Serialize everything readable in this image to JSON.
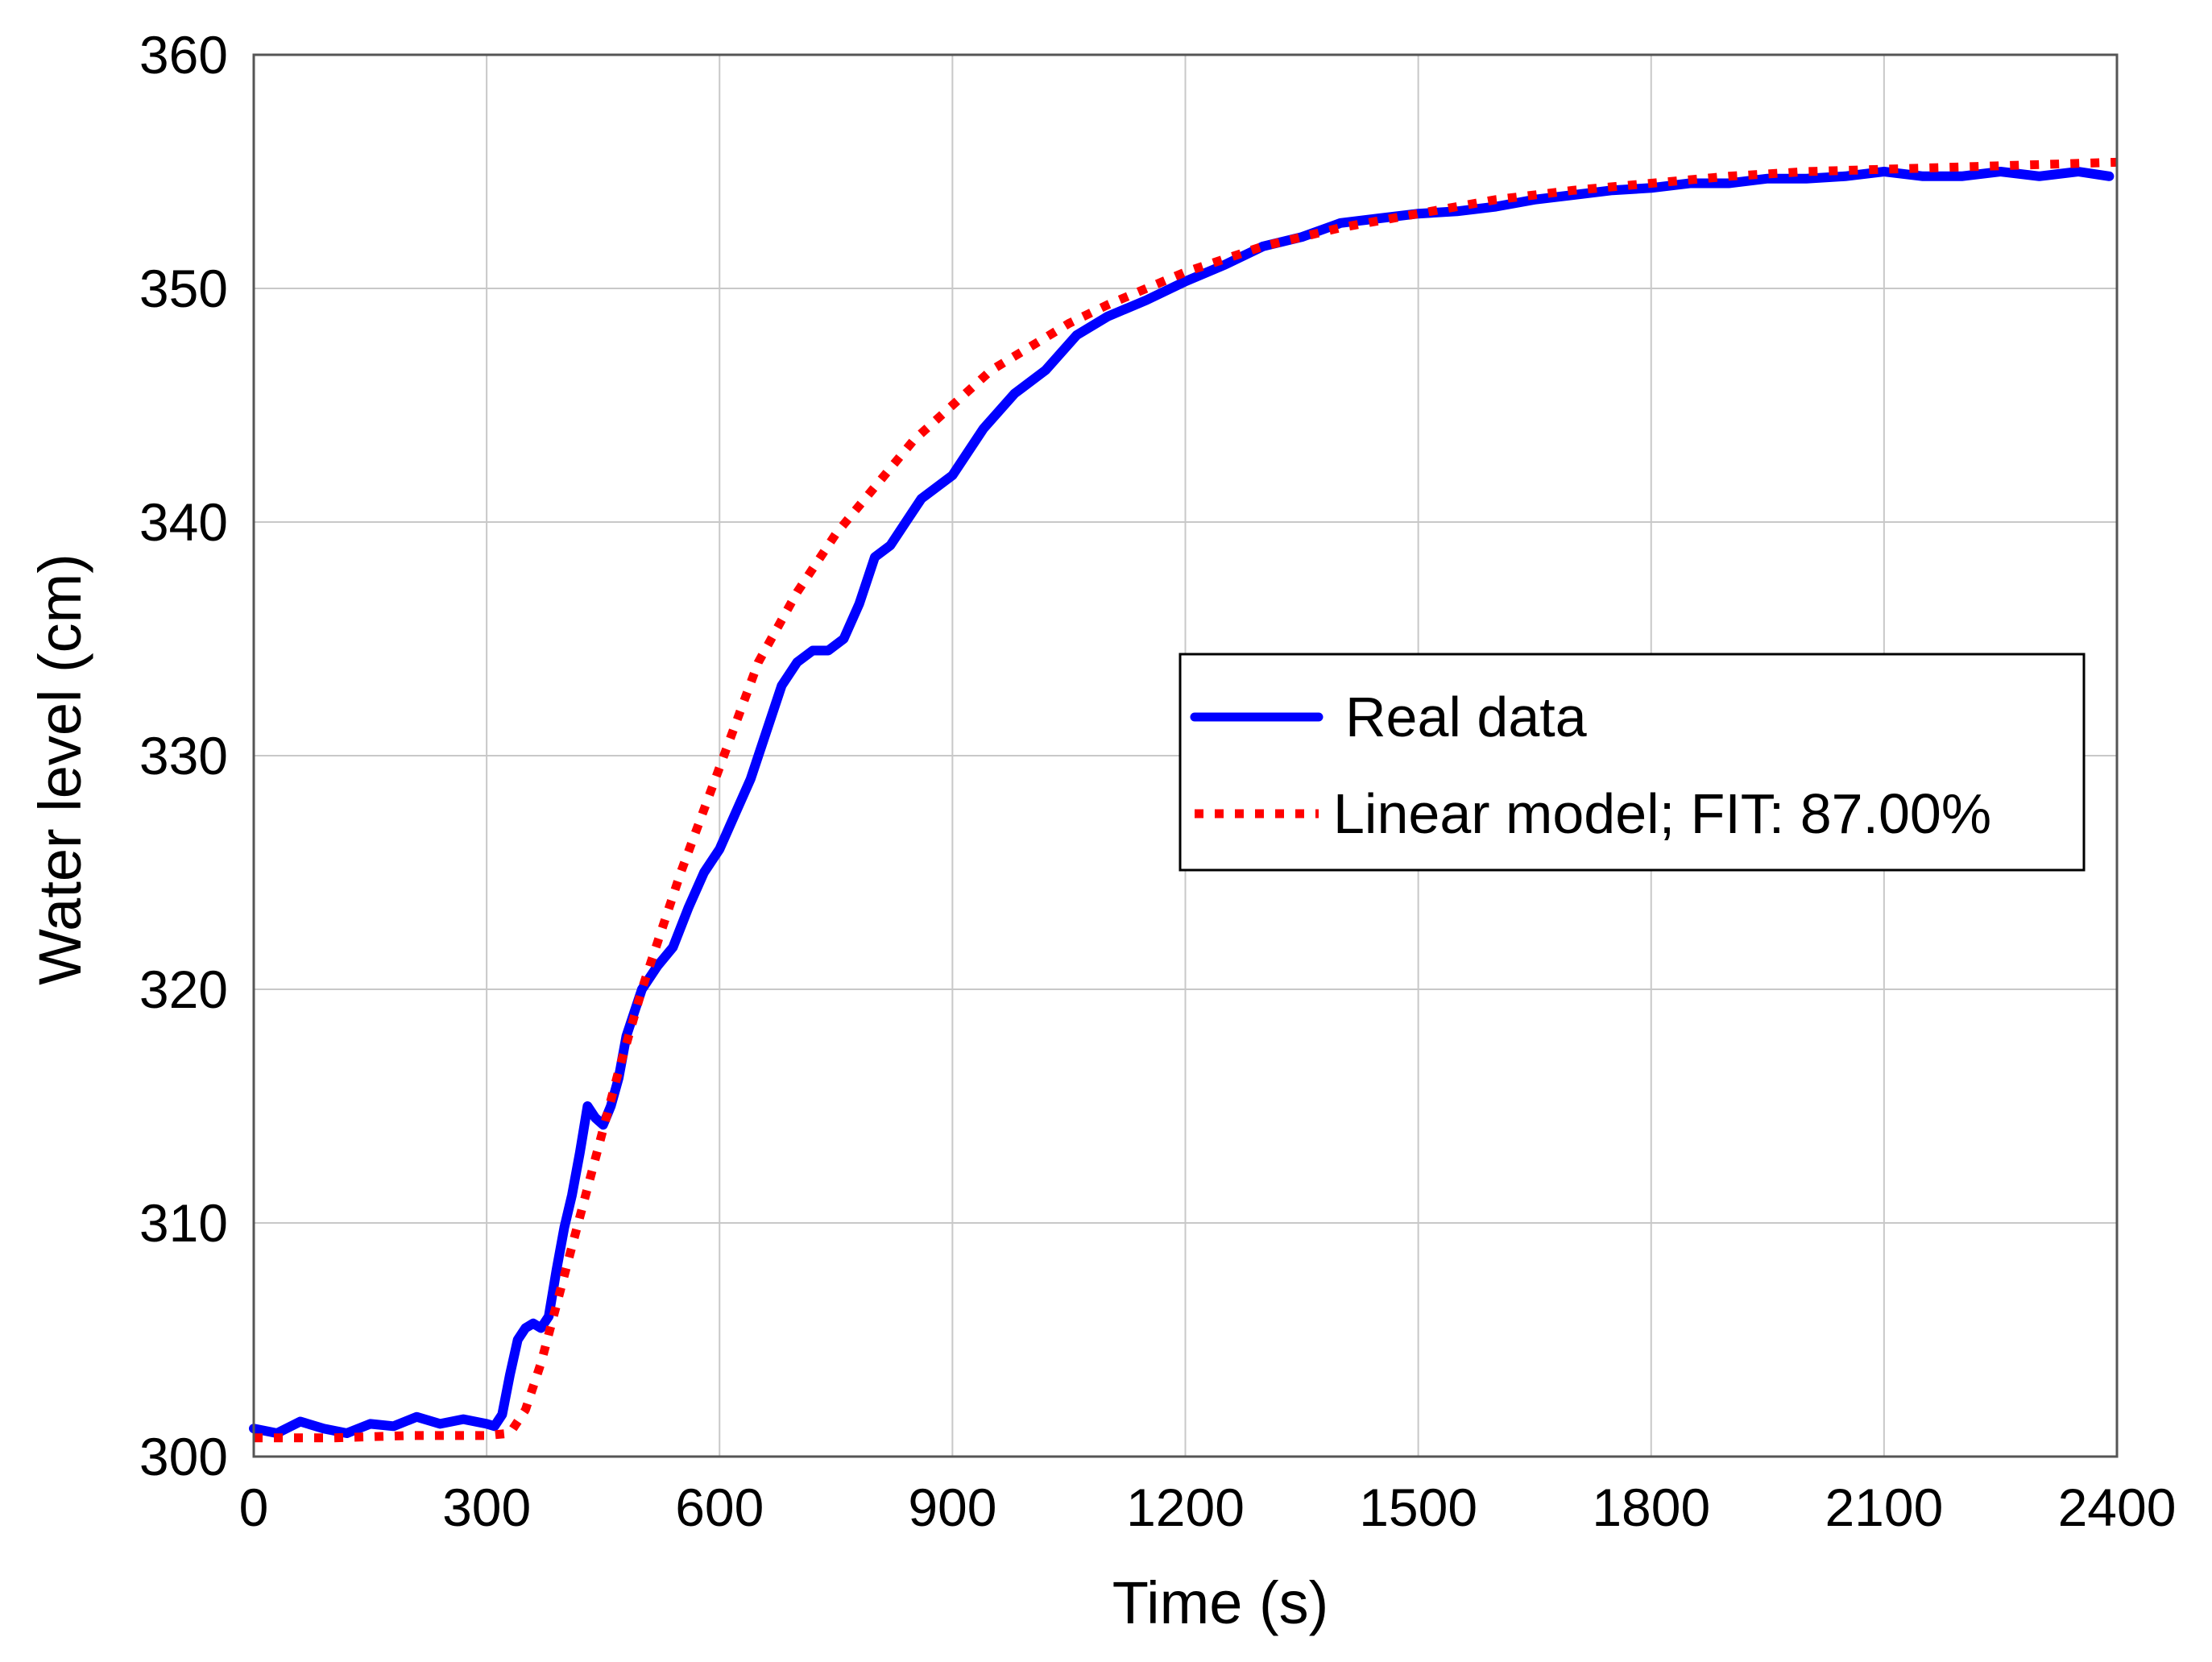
{
  "chart_data": {
    "type": "line",
    "title": "",
    "xlabel": "Time (s)",
    "ylabel": "Water level (cm)",
    "xlim": [
      0,
      2400
    ],
    "ylim": [
      300,
      360
    ],
    "xticks": [
      0,
      300,
      600,
      900,
      1200,
      1500,
      1800,
      2100,
      2400
    ],
    "yticks": [
      300,
      310,
      320,
      330,
      340,
      350,
      360
    ],
    "xtick_labels": [
      "0",
      "300",
      "600",
      "900",
      "1200",
      "1500",
      "1800",
      "2100",
      "2400"
    ],
    "ytick_labels": [
      "300",
      "310",
      "320",
      "330",
      "340",
      "350",
      "360"
    ],
    "grid": true,
    "legend_position": "right-middle",
    "series": [
      {
        "name": "Real data",
        "color": "#0000ff",
        "style": "solid",
        "x": [
          0,
          30,
          60,
          90,
          120,
          150,
          180,
          210,
          240,
          270,
          300,
          310,
          320,
          330,
          340,
          350,
          360,
          370,
          380,
          390,
          400,
          410,
          420,
          430,
          440,
          450,
          460,
          470,
          480,
          490,
          500,
          520,
          540,
          560,
          580,
          600,
          620,
          640,
          660,
          680,
          700,
          720,
          740,
          760,
          780,
          800,
          820,
          840,
          860,
          880,
          900,
          940,
          980,
          1020,
          1060,
          1100,
          1150,
          1200,
          1250,
          1300,
          1350,
          1400,
          1450,
          1500,
          1550,
          1600,
          1650,
          1700,
          1750,
          1800,
          1850,
          1900,
          1950,
          2000,
          2050,
          2100,
          2150,
          2200,
          2250,
          2300,
          2350,
          2390
        ],
        "values": [
          301.2,
          301.0,
          301.5,
          301.2,
          301.0,
          301.4,
          301.3,
          301.7,
          301.4,
          301.6,
          301.4,
          301.3,
          301.8,
          303.5,
          305.0,
          305.5,
          305.7,
          305.5,
          306.0,
          308.0,
          309.8,
          311.2,
          313.0,
          315.0,
          314.5,
          314.2,
          315.0,
          316.2,
          318.0,
          319.0,
          320.0,
          321.0,
          321.8,
          323.5,
          325.0,
          326.0,
          327.5,
          329.0,
          331.0,
          333.0,
          334.0,
          334.5,
          334.5,
          335.0,
          336.5,
          338.5,
          339.0,
          340.0,
          341.0,
          341.5,
          342.0,
          344.0,
          345.5,
          346.5,
          348.0,
          348.8,
          349.5,
          350.3,
          351.0,
          351.8,
          352.2,
          352.8,
          353.0,
          353.2,
          353.3,
          353.5,
          353.8,
          354.0,
          354.2,
          354.3,
          354.5,
          354.5,
          354.7,
          354.7,
          354.8,
          355.0,
          354.8,
          354.8,
          355.0,
          354.8,
          355.0,
          354.8
        ]
      },
      {
        "name": "Linear model; FIT: 87.00%",
        "color": "#ff0000",
        "style": "dotted",
        "x": [
          0,
          100,
          200,
          300,
          330,
          350,
          370,
          390,
          410,
          430,
          450,
          470,
          500,
          550,
          600,
          650,
          700,
          750,
          800,
          850,
          900,
          950,
          1000,
          1050,
          1100,
          1150,
          1200,
          1300,
          1400,
          1500,
          1600,
          1700,
          1800,
          1900,
          2000,
          2100,
          2200,
          2300,
          2400
        ],
        "values": [
          300.8,
          300.8,
          300.9,
          300.9,
          301.0,
          302.0,
          304.0,
          306.5,
          309.0,
          311.5,
          314.0,
          316.5,
          320.0,
          325.0,
          329.5,
          334.0,
          337.0,
          339.5,
          341.5,
          343.5,
          345.0,
          346.5,
          347.5,
          348.5,
          349.3,
          350.0,
          350.7,
          351.8,
          352.6,
          353.2,
          353.8,
          354.2,
          354.5,
          354.8,
          355.0,
          355.1,
          355.2,
          355.3,
          355.4
        ]
      }
    ],
    "legend": {
      "entries": [
        "Real data",
        "Linear model; FIT: 87.00%"
      ]
    }
  },
  "colors": {
    "real_data": "#0000ff",
    "linear_model": "#ff0000",
    "grid": "#c8c8c8",
    "axes": "#555555"
  }
}
